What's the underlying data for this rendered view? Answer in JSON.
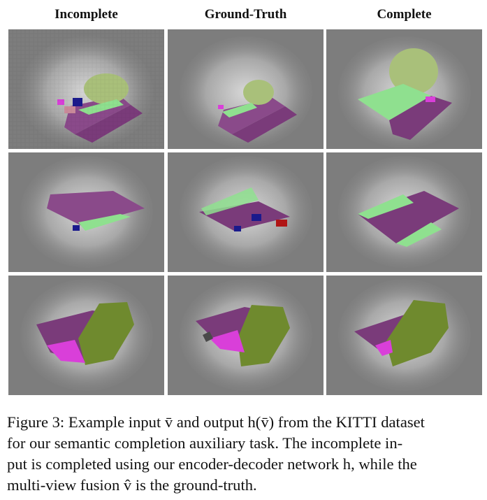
{
  "columns": [
    "Incomplete",
    "Ground-Truth",
    "Complete"
  ],
  "caption": {
    "line1": "Figure 3: Example input v̄ and output h(v̄) from the KITTI dataset",
    "line2": "for our semantic completion auxiliary task.  The incomplete in-",
    "line3": "put is completed using our encoder-decoder network h, while the",
    "line4": "multi-view fusion v̂ is the ground-truth."
  },
  "colors": {
    "background_gray": "#7d7d7d",
    "road_purple": "#7a3b7a",
    "vegetation_light_green": "#8fe08f",
    "vegetation_olive": "#6f8a2e",
    "sidewalk_magenta": "#d93fd9",
    "car_blue": "#1a1a8c",
    "red": "#b01515"
  }
}
